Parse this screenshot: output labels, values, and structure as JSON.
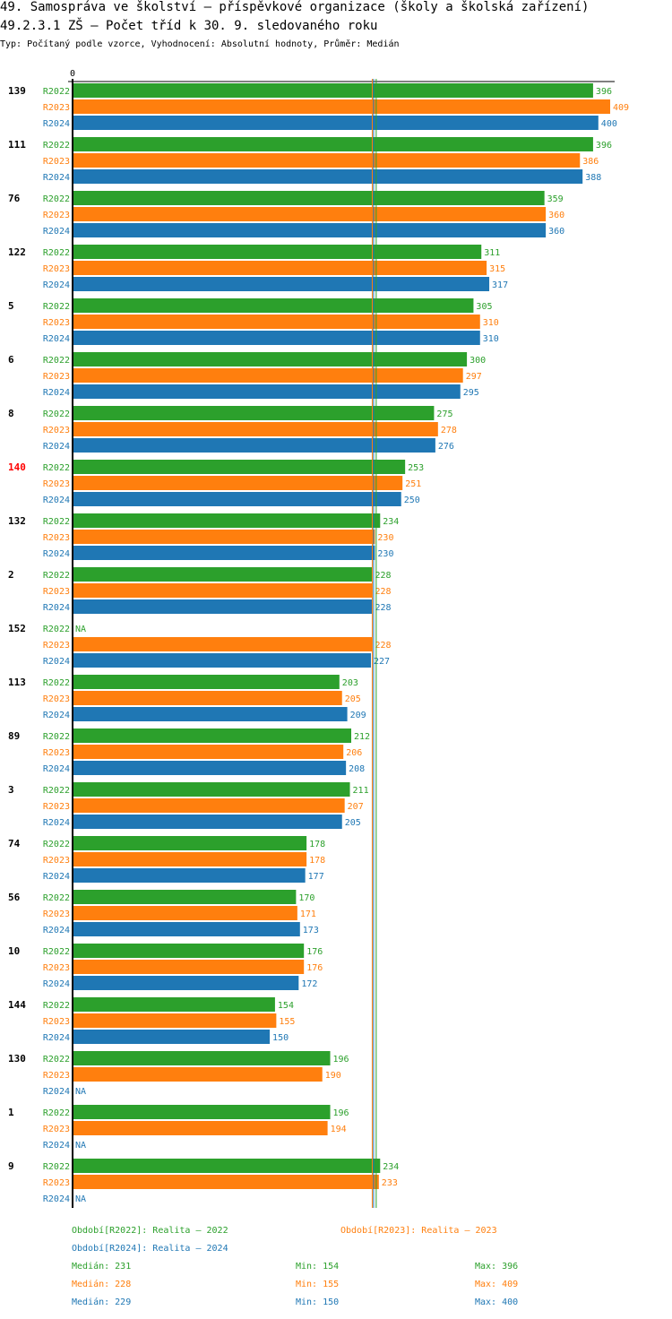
{
  "title": "49. Samospráva ve školství – příspěvkové organizace (školy a školská zařízení)",
  "subtitle": "49.2.3.1 ZŠ – Počet tříd k 30. 9. sledovaného roku",
  "type_line": "Typ: Počítaný podle vzorce, Vyhodnocení: Absolutní hodnoty, Průměr: Medián",
  "chart_data": {
    "type": "bar",
    "orientation": "horizontal",
    "axis_zero_label": "0",
    "xlim": [
      0,
      409
    ],
    "series_names": [
      "R2022",
      "R2023",
      "R2024"
    ],
    "colors": {
      "R2022": "#2ca02c",
      "R2023": "#ff7f0e",
      "R2024": "#1f77b4"
    },
    "highlight_color": "#ff0000",
    "highlighted_category": "140",
    "categories": [
      "139",
      "111",
      "76",
      "122",
      "5",
      "6",
      "8",
      "140",
      "132",
      "2",
      "152",
      "113",
      "89",
      "3",
      "74",
      "56",
      "10",
      "144",
      "130",
      "1",
      "9"
    ],
    "series": [
      {
        "name": "R2022",
        "values": [
          396,
          396,
          359,
          311,
          305,
          300,
          275,
          253,
          234,
          228,
          null,
          203,
          212,
          211,
          178,
          170,
          176,
          154,
          196,
          196,
          234
        ]
      },
      {
        "name": "R2023",
        "values": [
          409,
          386,
          360,
          315,
          310,
          297,
          278,
          251,
          230,
          228,
          228,
          205,
          206,
          207,
          178,
          171,
          176,
          155,
          190,
          194,
          233
        ]
      },
      {
        "name": "R2024",
        "values": [
          400,
          388,
          360,
          317,
          310,
          295,
          276,
          250,
          230,
          228,
          227,
          209,
          208,
          205,
          177,
          173,
          172,
          150,
          null,
          null,
          null
        ]
      }
    ],
    "na_label": "NA",
    "medians": {
      "R2022": 231,
      "R2023": 228,
      "R2024": 229
    }
  },
  "legend": {
    "r2022": "Období[R2022]: Realita – 2022",
    "r2023": "Období[R2023]: Realita – 2023",
    "r2024": "Období[R2024]: Realita – 2024"
  },
  "stats": [
    {
      "median": "Medián: 231",
      "min": "Min: 154",
      "max": "Max: 396"
    },
    {
      "median": "Medián: 228",
      "min": "Min: 155",
      "max": "Max: 409"
    },
    {
      "median": "Medián: 229",
      "min": "Min: 150",
      "max": "Max: 400"
    }
  ]
}
